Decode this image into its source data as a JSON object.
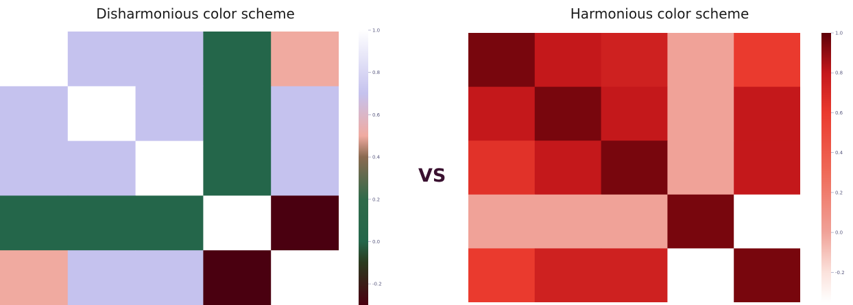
{
  "comparison_label": "VS",
  "chart_data": [
    {
      "type": "heatmap",
      "title": "Disharmonious color scheme",
      "rows": 5,
      "cols": 5,
      "values": [
        [
          1.0,
          0.7,
          0.7,
          0.0,
          0.5
        ],
        [
          0.7,
          1.0,
          0.7,
          0.0,
          0.7
        ],
        [
          0.7,
          0.7,
          1.0,
          0.0,
          0.7
        ],
        [
          0.0,
          0.0,
          0.0,
          1.0,
          -0.3
        ],
        [
          0.5,
          0.7,
          0.7,
          -0.3,
          1.0
        ]
      ],
      "colorscale": [
        [
          -0.3,
          "#4a0010"
        ],
        [
          -0.1,
          "#2b3a1f"
        ],
        [
          0.0,
          "#24664a"
        ],
        [
          0.2,
          "#2f6a4a"
        ],
        [
          0.4,
          "#8a6a50"
        ],
        [
          0.5,
          "#f0aaa0"
        ],
        [
          0.7,
          "#c5c2ee"
        ],
        [
          1.0,
          "#ffffff"
        ]
      ],
      "colorbar": {
        "ticks": [
          "1.0",
          "0.8",
          "0.6",
          "0.4",
          "0.2",
          "0.0",
          "-0.2"
        ],
        "range": [
          -0.3,
          1.0
        ]
      }
    },
    {
      "type": "heatmap",
      "title": "Harmonious color scheme",
      "rows": 5,
      "cols": 5,
      "values": [
        [
          0.95,
          0.8,
          0.75,
          0.0,
          0.6
        ],
        [
          0.8,
          0.95,
          0.8,
          0.0,
          0.8
        ],
        [
          0.65,
          0.8,
          0.95,
          0.0,
          0.8
        ],
        [
          0.0,
          0.0,
          0.0,
          0.95,
          -0.35
        ],
        [
          0.6,
          0.75,
          0.75,
          -0.35,
          0.95
        ]
      ],
      "colorscale": [
        [
          -0.35,
          "#ffffff"
        ],
        [
          -0.2,
          "#fbe2dc"
        ],
        [
          0.0,
          "#f0a298"
        ],
        [
          0.3,
          "#ef6a58"
        ],
        [
          0.6,
          "#ea3a2e"
        ],
        [
          0.8,
          "#c4181b"
        ],
        [
          1.0,
          "#5e0008"
        ]
      ],
      "colorbar": {
        "ticks": [
          "1.0",
          "0.8",
          "0.6",
          "0.4",
          "0.2",
          "0.0",
          "-0.2"
        ],
        "range": [
          -0.35,
          1.0
        ]
      }
    }
  ]
}
